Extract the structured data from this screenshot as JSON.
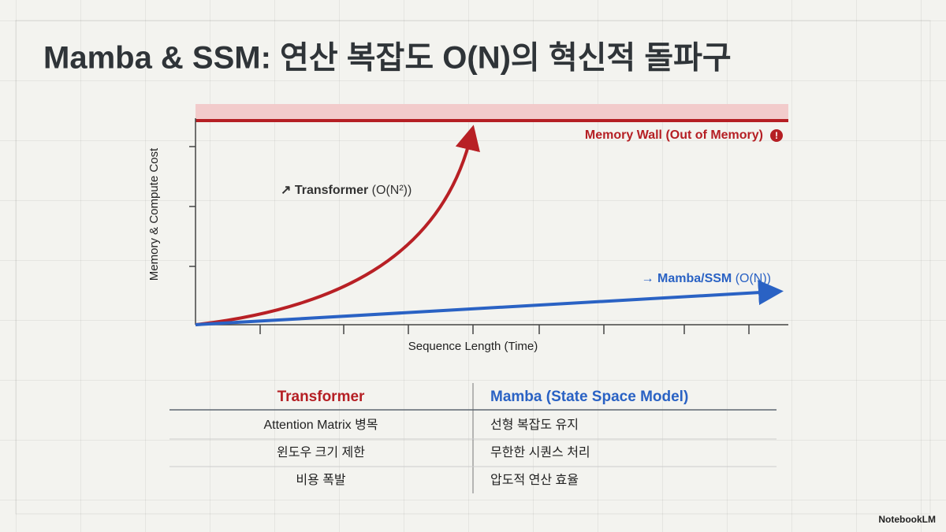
{
  "header": {
    "title": "Mamba & SSM: 연산 복잡도 O(N)의 혁신적 돌파구"
  },
  "chart": {
    "y_label": "Memory & Compute Cost",
    "x_label": "Sequence Length (Time)",
    "memory_wall": "Memory Wall (Out of Memory)",
    "transformer": {
      "name": "↗ Transformer",
      "complexity": "(O(N²))"
    },
    "mamba": {
      "name": "→ Mamba/SSM",
      "complexity": "(O(N))"
    }
  },
  "table": {
    "headers": [
      "Transformer",
      "Mamba (State Space Model)"
    ],
    "rows": [
      [
        "Attention Matrix 병목",
        "선형 복잡도 유지"
      ],
      [
        "윈도우 크기 제한",
        "무한한 시퀀스 처리"
      ],
      [
        "비용 폭발",
        "압도적 연산 효율"
      ]
    ]
  },
  "footer": {
    "brand": "NotebookLM"
  }
}
